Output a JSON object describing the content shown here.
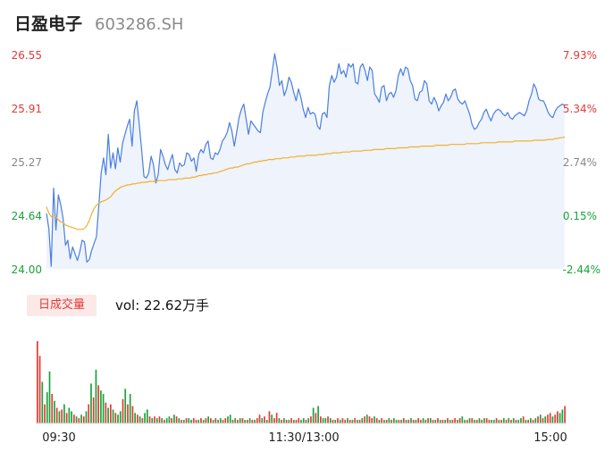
{
  "header": {
    "name": "日盈电子",
    "code": "603286.SH"
  },
  "volume_panel": {
    "tag_label": "日成交量",
    "vol_label": "vol: 22.62万手"
  },
  "colors": {
    "price_line": "#4a7fe0",
    "price_fill": "#eef3fc",
    "avg_line": "#f2b02c",
    "up": "#e53935",
    "down": "#1aa33a",
    "neutral_axis": "#888888"
  },
  "chart_data": [
    {
      "type": "line",
      "title": "",
      "x_ticks": [
        "09:30",
        "11:30/13:00",
        "15:00"
      ],
      "y_left_ticks": [
        "26.55",
        "25.91",
        "25.27",
        "24.64",
        "24.00"
      ],
      "y_right_ticks": [
        "7.93%",
        "5.34%",
        "2.74%",
        "0.15%",
        "-2.44%"
      ],
      "ylim": [
        24.0,
        26.55
      ],
      "series": [
        {
          "values": [
            24.66,
            24.48,
            24.03,
            24.96,
            24.46,
            24.88,
            24.76,
            24.6,
            24.28,
            24.34,
            24.12,
            24.26,
            24.18,
            24.1,
            24.2,
            24.34,
            24.32,
            24.08,
            24.11,
            24.22,
            24.3,
            24.38,
            24.74,
            25.14,
            25.32,
            25.12,
            25.6,
            25.2,
            25.38,
            25.19,
            25.44,
            25.27,
            25.49,
            25.6,
            25.7,
            25.78,
            25.46,
            25.88,
            26.0,
            25.72,
            25.43,
            25.1,
            25.08,
            25.14,
            25.34,
            25.24,
            25.02,
            25.12,
            25.42,
            25.34,
            25.24,
            25.18,
            25.28,
            25.36,
            25.18,
            25.14,
            25.26,
            25.22,
            25.24,
            25.38,
            25.36,
            25.28,
            25.32,
            25.16,
            25.36,
            25.42,
            25.38,
            25.48,
            25.52,
            25.32,
            25.3,
            25.38,
            25.36,
            25.42,
            25.52,
            25.56,
            25.62,
            25.74,
            25.64,
            25.46,
            25.62,
            25.8,
            25.9,
            25.96,
            25.78,
            25.6,
            25.76,
            25.72,
            25.68,
            25.64,
            25.62,
            25.86,
            25.98,
            26.08,
            26.16,
            26.36,
            26.56,
            26.4,
            26.18,
            26.24,
            26.06,
            26.14,
            26.28,
            26.22,
            26.1,
            26.0,
            26.14,
            26.04,
            25.9,
            25.8,
            25.92,
            25.84,
            25.86,
            25.84,
            25.7,
            25.66,
            25.84,
            25.86,
            25.8,
            26.18,
            26.3,
            26.22,
            26.28,
            26.44,
            26.32,
            26.36,
            26.28,
            26.44,
            26.4,
            26.44,
            26.22,
            26.2,
            26.4,
            26.44,
            26.36,
            26.24,
            26.4,
            26.36,
            26.08,
            26.04,
            25.98,
            26.16,
            26.18,
            26.0,
            26.08,
            26.1,
            26.04,
            26.12,
            26.3,
            26.38,
            26.3,
            26.4,
            26.38,
            26.24,
            26.18,
            26.02,
            26.0,
            26.1,
            26.12,
            26.24,
            26.2,
            26.0,
            25.96,
            26.04,
            25.98,
            25.88,
            25.94,
            25.98,
            26.08,
            26.0,
            26.04,
            26.12,
            26.14,
            26.02,
            25.98,
            25.96,
            26.0,
            25.92,
            25.84,
            25.72,
            25.66,
            25.68,
            25.74,
            25.78,
            25.86,
            25.9,
            25.82,
            25.76,
            25.84,
            25.88,
            25.9,
            25.88,
            25.84,
            25.82,
            25.86,
            25.8,
            25.78,
            25.82,
            25.84,
            25.86,
            25.84,
            25.82,
            25.88,
            26.0,
            26.08,
            26.2,
            26.14,
            26.02,
            26.0,
            26.0,
            25.94,
            25.86,
            25.82,
            25.8,
            25.88,
            25.92,
            25.94,
            25.96,
            25.94
          ]
        },
        {
          "values": [
            24.74,
            24.66,
            24.62,
            24.63,
            24.62,
            24.58,
            24.56,
            24.55,
            24.52,
            24.51,
            24.5,
            24.49,
            24.48,
            24.47,
            24.47,
            24.47,
            24.48,
            24.52,
            24.58,
            24.66,
            24.72,
            24.76,
            24.78,
            24.8,
            24.81,
            24.82,
            24.84,
            24.86,
            24.9,
            24.93,
            24.95,
            24.97,
            24.98,
            24.99,
            25.0,
            25.0,
            25.01,
            25.01,
            25.02,
            25.02,
            25.03,
            25.03,
            25.03,
            25.04,
            25.04,
            25.04,
            25.04,
            25.05,
            25.05,
            25.05,
            25.05,
            25.06,
            25.06,
            25.06,
            25.06,
            25.07,
            25.07,
            25.07,
            25.08,
            25.08,
            25.08,
            25.09,
            25.09,
            25.1,
            25.11,
            25.11,
            25.12,
            25.12,
            25.13,
            25.13,
            25.14,
            25.14,
            25.15,
            25.16,
            25.17,
            25.18,
            25.19,
            25.2,
            25.2,
            25.21,
            25.21,
            25.22,
            25.23,
            25.24,
            25.25,
            25.25,
            25.26,
            25.27,
            25.27,
            25.28,
            25.28,
            25.29,
            25.29,
            25.3,
            25.3,
            25.3,
            25.31,
            25.31,
            25.31,
            25.32,
            25.32,
            25.32,
            25.33,
            25.33,
            25.33,
            25.34,
            25.34,
            25.34,
            25.34,
            25.35,
            25.35,
            25.35,
            25.35,
            25.35,
            25.36,
            25.36,
            25.36,
            25.37,
            25.37,
            25.37,
            25.38,
            25.38,
            25.38,
            25.38,
            25.39,
            25.39,
            25.39,
            25.39,
            25.4,
            25.4,
            25.4,
            25.4,
            25.4,
            25.41,
            25.41,
            25.41,
            25.41,
            25.42,
            25.42,
            25.42,
            25.42,
            25.42,
            25.43,
            25.43,
            25.43,
            25.43,
            25.43,
            25.44,
            25.44,
            25.44,
            25.44,
            25.44,
            25.45,
            25.45,
            25.45,
            25.45,
            25.45,
            25.46,
            25.46,
            25.46,
            25.46,
            25.46,
            25.46,
            25.47,
            25.47,
            25.47,
            25.47,
            25.47,
            25.47,
            25.48,
            25.48,
            25.48,
            25.48,
            25.48,
            25.48,
            25.48,
            25.49,
            25.49,
            25.49,
            25.49,
            25.49,
            25.49,
            25.5,
            25.5,
            25.5,
            25.5,
            25.5,
            25.5,
            25.5,
            25.51,
            25.51,
            25.51,
            25.51,
            25.51,
            25.51,
            25.51,
            25.52,
            25.52,
            25.52,
            25.52,
            25.52,
            25.52,
            25.52,
            25.52,
            25.53,
            25.53,
            25.53,
            25.53,
            25.53,
            25.53,
            25.54,
            25.54,
            25.54,
            25.55,
            25.55,
            25.56,
            25.56,
            25.57
          ]
        }
      ],
      "legend": "none",
      "grid": false
    },
    {
      "type": "bar",
      "title": "",
      "series": [
        {
          "values": [
            95,
            78,
            48,
            22,
            36,
            60,
            34,
            26,
            18,
            14,
            16,
            22,
            12,
            18,
            14,
            10,
            8,
            6,
            10,
            8,
            14,
            22,
            46,
            30,
            62,
            44,
            38,
            34,
            24,
            18,
            22,
            16,
            12,
            10,
            14,
            28,
            40,
            22,
            34,
            20,
            12,
            10,
            8,
            6,
            12,
            16,
            8,
            6,
            8,
            6,
            8,
            6,
            4,
            6,
            8,
            6,
            10,
            8,
            6,
            4,
            4,
            6,
            6,
            4,
            6,
            4,
            4,
            6,
            4,
            6,
            8,
            6,
            4,
            6,
            4,
            6,
            4,
            6,
            8,
            10,
            4,
            6,
            4,
            6,
            6,
            4,
            4,
            6,
            4,
            4,
            6,
            10,
            6,
            8,
            4,
            14,
            10,
            6,
            12,
            6,
            4,
            6,
            4,
            4,
            6,
            4,
            4,
            6,
            4,
            6,
            4,
            6,
            8,
            18,
            12,
            20,
            8,
            6,
            6,
            8,
            6,
            4,
            4,
            6,
            4,
            6,
            4,
            6,
            4,
            4,
            6,
            4,
            4,
            6,
            8,
            10,
            8,
            6,
            8,
            6,
            4,
            6,
            4,
            4,
            6,
            4,
            6,
            4,
            4,
            4,
            6,
            4,
            4,
            6,
            4,
            4,
            6,
            4,
            6,
            4,
            6,
            6,
            4,
            4,
            6,
            4,
            4,
            4,
            6,
            4,
            4,
            6,
            4,
            6,
            8,
            4,
            4,
            6,
            6,
            4,
            4,
            6,
            4,
            6,
            6,
            4,
            4,
            4,
            6,
            4,
            4,
            6,
            4,
            6,
            4,
            6,
            4,
            4,
            6,
            8,
            4,
            4,
            6,
            4,
            6,
            8,
            10,
            6,
            8,
            10,
            12,
            8,
            10,
            14,
            12,
            16,
            20
          ],
          "directions": [
            "up",
            "up",
            "down",
            "up",
            "down",
            "down",
            "up",
            "down",
            "up",
            "down",
            "up",
            "down",
            "up",
            "down",
            "down",
            "up",
            "down",
            "up",
            "down",
            "up",
            "down",
            "up",
            "down",
            "up",
            "down",
            "up",
            "down",
            "down",
            "up",
            "down",
            "up",
            "down",
            "up",
            "down",
            "down",
            "up",
            "down",
            "up",
            "down",
            "up",
            "down",
            "up",
            "down",
            "up",
            "down",
            "down",
            "up",
            "down",
            "up",
            "down",
            "up",
            "down",
            "up",
            "down",
            "down",
            "up",
            "down",
            "up",
            "down",
            "up",
            "down",
            "up",
            "down",
            "down",
            "up",
            "up",
            "down",
            "up",
            "down",
            "up",
            "down",
            "up",
            "down",
            "up",
            "down",
            "down",
            "up",
            "up",
            "down",
            "down",
            "up",
            "down",
            "up",
            "down",
            "up",
            "down",
            "up",
            "down",
            "up",
            "down",
            "up",
            "up",
            "down",
            "up",
            "down",
            "up",
            "down",
            "up",
            "up",
            "down",
            "up",
            "down",
            "up",
            "down",
            "up",
            "down",
            "up",
            "up",
            "down",
            "down",
            "up",
            "down",
            "up",
            "down",
            "up",
            "down",
            "up",
            "down",
            "down",
            "up",
            "down",
            "up",
            "down",
            "up",
            "down",
            "up",
            "up",
            "down",
            "up",
            "down",
            "up",
            "down",
            "up",
            "down",
            "up",
            "down",
            "up",
            "up",
            "down",
            "up",
            "down",
            "up",
            "down",
            "up",
            "down",
            "up",
            "down",
            "down",
            "up",
            "down",
            "up",
            "down",
            "up",
            "down",
            "up",
            "down",
            "up",
            "up",
            "down",
            "down",
            "up",
            "down",
            "up",
            "down",
            "up",
            "down",
            "up",
            "down",
            "up",
            "down",
            "up",
            "up",
            "down",
            "up",
            "down",
            "down",
            "up",
            "down",
            "up",
            "down",
            "up",
            "down",
            "up",
            "down",
            "up",
            "up",
            "down",
            "down",
            "up",
            "down",
            "up",
            "down",
            "up",
            "down",
            "up",
            "down",
            "up",
            "down",
            "down",
            "up",
            "down",
            "up",
            "down",
            "up",
            "down",
            "up",
            "down",
            "up",
            "down",
            "up",
            "up",
            "down",
            "up",
            "up",
            "down",
            "down",
            "up",
            "up",
            "up",
            "down",
            "up",
            "down",
            "up",
            "down"
          ]
        }
      ],
      "legend": "none",
      "grid": false
    }
  ]
}
